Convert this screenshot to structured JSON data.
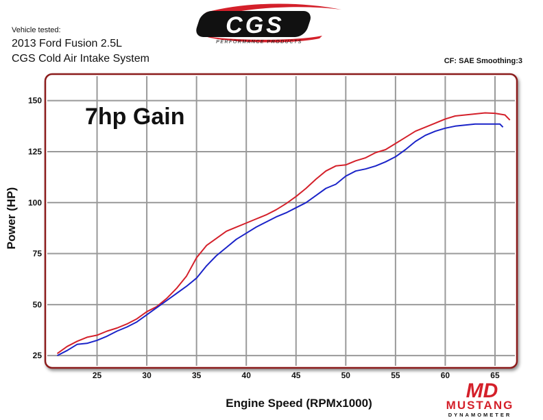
{
  "header": {
    "vehicle_caption": "Vehicle tested:",
    "vehicle_line1": "2013 Ford Fusion 2.5L",
    "vehicle_line2": "CGS Cold Air Intake System",
    "correction": "CF: SAE Smoothing:3"
  },
  "logos": {
    "cgs": "CGS",
    "cgs_tagline": "PERFORMANCE PRODUCTS",
    "md": "MD",
    "md_name": "MUSTANG",
    "md_sub": "DYNAMOMETER"
  },
  "colors": {
    "frame": "#8b1a1a",
    "grid": "#999999",
    "after": "#d4202a",
    "before": "#1a23c8",
    "plot_bg": "#ffffff"
  },
  "chart_data": {
    "type": "line",
    "title": "",
    "xlabel": "Engine Speed (RPMx1000)",
    "ylabel": "Power (HP)",
    "xlim": [
      20,
      67
    ],
    "ylim": [
      20,
      162
    ],
    "xticks": [
      25,
      30,
      35,
      40,
      45,
      50,
      55,
      60,
      65
    ],
    "yticks": [
      25,
      50,
      75,
      100,
      125,
      150
    ],
    "grid": true,
    "annotation": "7hp Gain",
    "series": [
      {
        "color": "after",
        "x": [
          21,
          22,
          23,
          24,
          25,
          26,
          27,
          28,
          29,
          30,
          31,
          32,
          33,
          34,
          35,
          36,
          37,
          38,
          39,
          40,
          41,
          42,
          43,
          44,
          45,
          46,
          47,
          48,
          49,
          50,
          51,
          52,
          53,
          54,
          55,
          56,
          57,
          58,
          59,
          60,
          61,
          62,
          63,
          64,
          65,
          66,
          66.5
        ],
        "y": [
          26,
          29.5,
          32,
          34,
          35,
          37,
          38.5,
          40.5,
          43,
          46.5,
          49,
          53,
          58,
          64,
          73,
          79,
          82.5,
          86,
          88,
          90,
          92,
          94,
          96.5,
          99.5,
          103,
          107,
          111.5,
          115.5,
          118,
          118.5,
          120.5,
          122,
          124.5,
          126,
          129,
          132,
          135,
          137,
          139,
          141,
          142.5,
          143,
          143.5,
          144,
          143.8,
          143,
          140.5
        ]
      },
      {
        "color": "before",
        "x": [
          21,
          22,
          23,
          24,
          25,
          26,
          27,
          28,
          29,
          30,
          31,
          32,
          33,
          34,
          35,
          36,
          37,
          38,
          39,
          40,
          41,
          42,
          43,
          44,
          45,
          46,
          47,
          48,
          49,
          50,
          51,
          52,
          53,
          54,
          55,
          56,
          57,
          58,
          59,
          60,
          61,
          62,
          63,
          64,
          65,
          65.5,
          65.8
        ],
        "y": [
          25,
          27.5,
          30.5,
          31,
          32.5,
          34.5,
          37,
          39,
          41.5,
          45,
          48.5,
          52,
          55.5,
          59,
          63,
          69,
          74,
          78,
          82,
          85,
          88,
          90.5,
          93,
          95,
          97.5,
          100,
          103.5,
          107,
          109,
          113,
          115.5,
          116.5,
          118,
          120,
          122.5,
          126,
          130,
          133,
          135,
          136.5,
          137.5,
          138,
          138.5,
          138.5,
          138.5,
          138.5,
          137
        ]
      }
    ]
  }
}
